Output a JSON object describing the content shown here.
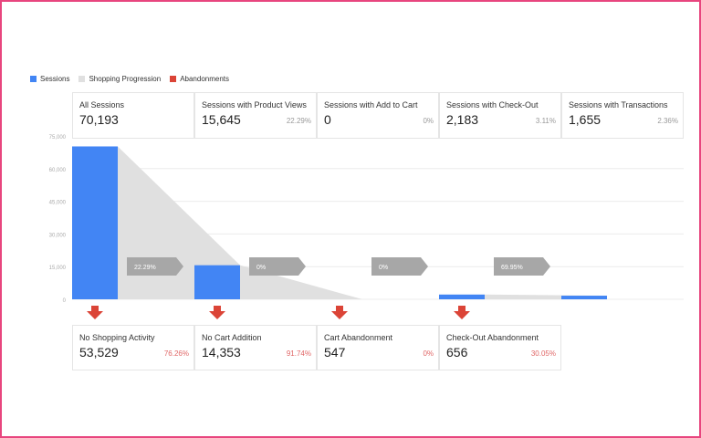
{
  "legend": [
    {
      "label": "Sessions",
      "color": "#4285f4"
    },
    {
      "label": "Shopping Progression",
      "color": "#e0e0e0"
    },
    {
      "label": "Abandonments",
      "color": "#db4437"
    }
  ],
  "colors": {
    "bar": "#4285f4",
    "progression": "#e0e0e0",
    "arrow": "#a7a7a7",
    "down_arrow": "#db4437",
    "grid": "#ececec"
  },
  "chart_data": {
    "type": "bar",
    "categories": [
      "All Sessions",
      "Sessions with Product Views",
      "Sessions with Add to Cart",
      "Sessions with Check-Out",
      "Sessions with Transactions"
    ],
    "values": [
      70193,
      15645,
      0,
      2183,
      1655
    ],
    "ylim": [
      0,
      75000
    ],
    "y_ticks": [
      0,
      15000,
      30000,
      45000,
      60000,
      75000
    ],
    "y_tick_labels": [
      "0",
      "15,000",
      "30,000",
      "45,000",
      "60,000",
      "75,000"
    ],
    "grid": true,
    "legend_position": "top-left",
    "progression_percent_labels": [
      "22.29%",
      "0%",
      "0%",
      "69.95%"
    ],
    "progression_values": [
      15645,
      0,
      0,
      1655
    ],
    "abandonment_values": [
      53529,
      14353,
      547,
      656
    ]
  },
  "stages": [
    {
      "label": "All Sessions",
      "value": "70,193",
      "pct": ""
    },
    {
      "label": "Sessions with Product Views",
      "value": "15,645",
      "pct": "22.29%"
    },
    {
      "label": "Sessions with Add to Cart",
      "value": "0",
      "pct": "0%"
    },
    {
      "label": "Sessions with Check-Out",
      "value": "2,183",
      "pct": "3.11%"
    },
    {
      "label": "Sessions with Transactions",
      "value": "1,655",
      "pct": "2.36%"
    }
  ],
  "abandonments": [
    {
      "label": "No Shopping Activity",
      "value": "53,529",
      "pct": "76.26%"
    },
    {
      "label": "No Cart Addition",
      "value": "14,353",
      "pct": "91.74%"
    },
    {
      "label": "Cart Abandonment",
      "value": "547",
      "pct": "0%"
    },
    {
      "label": "Check-Out Abandonment",
      "value": "656",
      "pct": "30.05%"
    }
  ]
}
